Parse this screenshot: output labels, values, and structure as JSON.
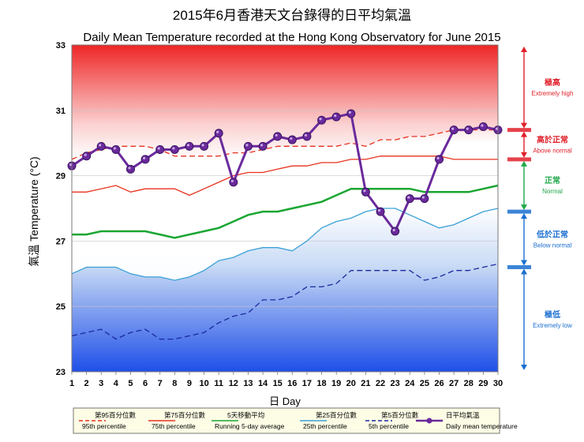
{
  "chart_data": {
    "type": "line",
    "title": "2015年6月香港天文台錄得的日平均氣溫",
    "subtitle": "Daily Mean Temperature recorded at the Hong Kong Observatory for June 2015",
    "xlabel": "日 Day",
    "ylabel": "氣溫 Temperature (°C)",
    "xlim": [
      1,
      30
    ],
    "ylim": [
      23,
      33
    ],
    "x": [
      1,
      2,
      3,
      4,
      5,
      6,
      7,
      8,
      9,
      10,
      11,
      12,
      13,
      14,
      15,
      16,
      17,
      18,
      19,
      20,
      21,
      22,
      23,
      24,
      25,
      26,
      27,
      28,
      29,
      30
    ],
    "y_ticks": [
      23,
      25,
      27,
      29,
      31,
      33
    ],
    "series": [
      {
        "name": "第95百分位數 95th percentile",
        "color": "#e8321e",
        "dash": true,
        "values": [
          29.5,
          29.7,
          29.8,
          29.9,
          29.9,
          29.9,
          29.8,
          29.6,
          29.6,
          29.6,
          29.6,
          29.7,
          29.7,
          29.8,
          29.9,
          29.9,
          29.9,
          29.9,
          29.9,
          30.0,
          29.9,
          30.1,
          30.1,
          30.2,
          30.2,
          30.3,
          30.4,
          30.4,
          30.4,
          30.4
        ]
      },
      {
        "name": "第75百分位數 75th percentile",
        "color": "#e8321e",
        "dash": false,
        "values": [
          28.5,
          28.5,
          28.6,
          28.7,
          28.5,
          28.6,
          28.6,
          28.6,
          28.4,
          28.6,
          28.8,
          29.0,
          29.1,
          29.1,
          29.2,
          29.3,
          29.3,
          29.4,
          29.4,
          29.5,
          29.5,
          29.6,
          29.6,
          29.6,
          29.6,
          29.6,
          29.5,
          29.5,
          29.5,
          29.5
        ]
      },
      {
        "name": "5天移動平均 Running 5-day average",
        "color": "#1aa632",
        "dash": false,
        "values": [
          27.2,
          27.2,
          27.3,
          27.3,
          27.3,
          27.3,
          27.2,
          27.1,
          27.2,
          27.3,
          27.4,
          27.6,
          27.8,
          27.9,
          27.9,
          28.0,
          28.1,
          28.2,
          28.4,
          28.6,
          28.6,
          28.6,
          28.6,
          28.6,
          28.5,
          28.5,
          28.5,
          28.5,
          28.6,
          28.7
        ]
      },
      {
        "name": "第25百分位數 25th percentile",
        "color": "#3aa0d6",
        "dash": false,
        "values": [
          26.0,
          26.2,
          26.2,
          26.2,
          26.0,
          25.9,
          25.9,
          25.8,
          25.9,
          26.1,
          26.4,
          26.5,
          26.7,
          26.8,
          26.8,
          26.7,
          27.0,
          27.4,
          27.6,
          27.7,
          27.9,
          28.0,
          28.0,
          27.8,
          27.6,
          27.4,
          27.5,
          27.7,
          27.9,
          28.0
        ]
      },
      {
        "name": "第5百分位數 5th percentile",
        "color": "#1a2a9c",
        "dash": true,
        "values": [
          24.1,
          24.2,
          24.3,
          24.0,
          24.2,
          24.3,
          24.0,
          24.0,
          24.1,
          24.2,
          24.5,
          24.7,
          24.8,
          25.2,
          25.2,
          25.3,
          25.6,
          25.6,
          25.7,
          26.1,
          26.1,
          26.1,
          26.1,
          26.1,
          25.8,
          25.9,
          26.1,
          26.1,
          26.2,
          26.3
        ]
      },
      {
        "name": "日平均氣溫 Daily mean temperature",
        "color": "#6a2a9c",
        "dash": false,
        "markers": true,
        "values": [
          29.3,
          29.6,
          29.9,
          29.8,
          29.2,
          29.5,
          29.8,
          29.8,
          29.9,
          29.9,
          30.3,
          28.8,
          29.9,
          29.9,
          30.2,
          30.1,
          30.2,
          30.7,
          30.8,
          30.9,
          28.5,
          27.9,
          27.3,
          28.3,
          28.3,
          29.5,
          30.4,
          30.4,
          30.5,
          30.4
        ]
      }
    ],
    "categories_side": [
      {
        "zh": "極高",
        "en": "Extremely high",
        "color": "#e0202a",
        "range": [
          30.4,
          33
        ]
      },
      {
        "zh": "高於正常",
        "en": "Above normal",
        "color": "#e0202a",
        "range": [
          29.5,
          30.4
        ]
      },
      {
        "zh": "正常",
        "en": "Normal",
        "color": "#22a84a",
        "range": [
          27.9,
          29.5
        ]
      },
      {
        "zh": "低於正常",
        "en": "Below normal",
        "color": "#1a6fd0",
        "range": [
          26.2,
          27.9
        ]
      },
      {
        "zh": "極低",
        "en": "Extremely low",
        "color": "#1a6fd0",
        "range": [
          23,
          26.2
        ]
      }
    ],
    "legend_position": "bottom"
  }
}
